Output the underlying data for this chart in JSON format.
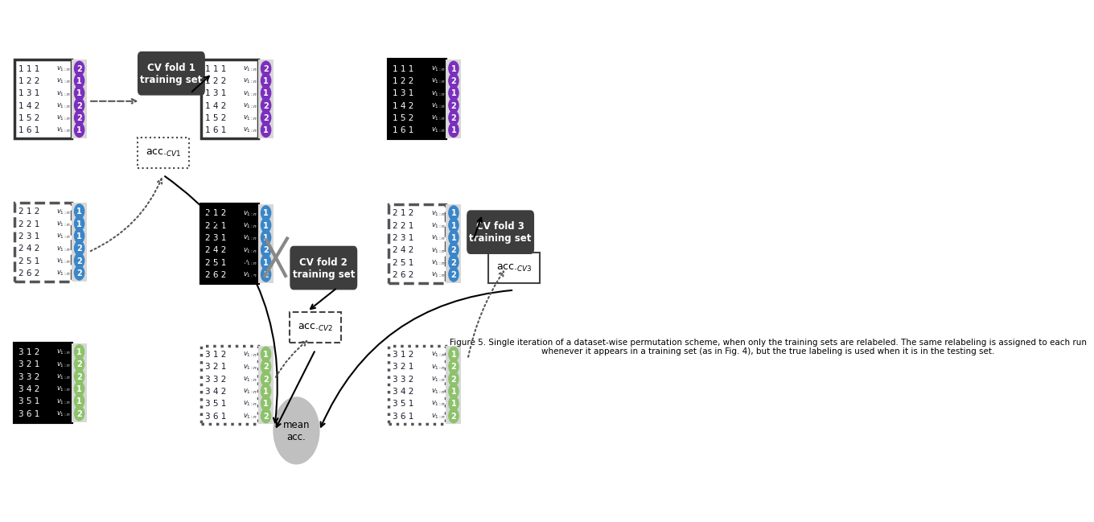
{
  "fig_width": 11.06,
  "fig_height": 6.38,
  "caption": "Figure 5. Single iteration of a dataset-wise permutation scheme, when only the training sets are relabeled. The same relabeling is assigned to each run\nwhenever it appears in a training set (as in Fig. 4), but the true labeling is used when it is in the testing set.",
  "fold1_rows": [
    "1 1 1",
    "1 2 2",
    "1 3 1",
    "1 4 2",
    "1 5 2",
    "1 6 1"
  ],
  "fold2_rows": [
    "2 1 2",
    "2 2 1",
    "2 3 1",
    "2 4 2",
    "2 5 1",
    "2 6 2"
  ],
  "fold3_rows": [
    "3 1 2",
    "3 2 1",
    "3 3 2",
    "3 4 2",
    "3 5 1",
    "3 6 1"
  ],
  "purple_labels": [
    "2",
    "1",
    "1",
    "2",
    "2",
    "1"
  ],
  "blue_labels": [
    "1",
    "1",
    "1",
    "2",
    "2",
    "2"
  ],
  "green_labels": [
    "1",
    "2",
    "2",
    "1",
    "1",
    "2"
  ],
  "black_purple_labels": [
    "1",
    "2",
    "1",
    "2",
    "2",
    "1"
  ],
  "black_blue_labels": [
    "1",
    "1",
    "1",
    "2",
    "1",
    "2"
  ],
  "black_green_labels": [
    "1",
    "2",
    "2",
    "1",
    "1",
    "2"
  ],
  "col1_purple_labels": [
    "2",
    "1",
    "1",
    "2",
    "2",
    "1"
  ],
  "col1_blue_labels": [
    "1",
    "1",
    "1",
    "2",
    "2",
    "2"
  ],
  "col1_green_labels": [
    "1",
    "2",
    "2",
    "1",
    "1",
    "2"
  ],
  "color_purple": "#7B2FBE",
  "color_blue": "#3A86C8",
  "color_green": "#8DC26A",
  "color_black": "#000000",
  "color_dark_gray": "#404040",
  "color_text": "#1a1a2e"
}
